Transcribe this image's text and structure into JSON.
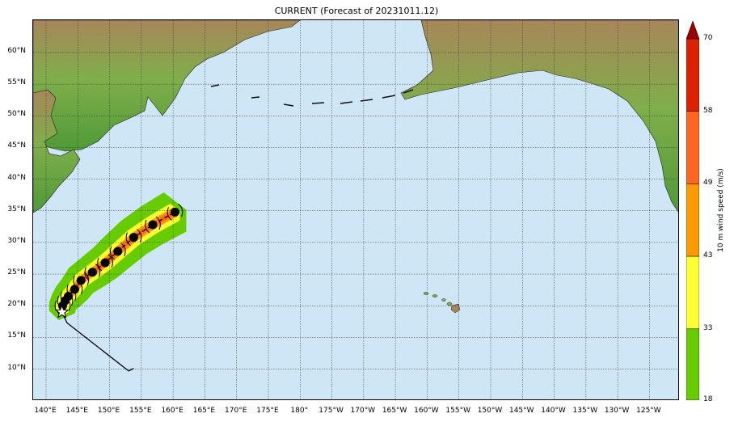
{
  "title": "CURRENT (Forecast of 20231011.12)",
  "lat_labels": [
    "60°N",
    "55°N",
    "50°N",
    "45°N",
    "40°N",
    "35°N",
    "30°N",
    "25°N",
    "20°N",
    "15°N",
    "10°N"
  ],
  "lon_labels": [
    "140°E",
    "145°E",
    "150°E",
    "155°E",
    "160°E",
    "165°E",
    "170°E",
    "175°E",
    "180°",
    "175°W",
    "170°W",
    "165°W",
    "160°W",
    "155°W",
    "150°W",
    "145°W",
    "140°W",
    "135°W",
    "130°W",
    "125°W"
  ],
  "colorbar": {
    "label": "10 m wind speed (m/s)",
    "ticks": [
      "18",
      "33",
      "43",
      "49",
      "58",
      "70"
    ],
    "colors": [
      "#66cc00",
      "#ffff33",
      "#ff9900",
      "#ff6622",
      "#dd2200",
      "#990000"
    ]
  },
  "map": {
    "ocean_color": "#cfe6f6",
    "track_positions": [
      {
        "lon": 142.5,
        "lat": 19.0
      },
      {
        "lon": 142.6,
        "lat": 20.0
      },
      {
        "lon": 143.0,
        "lat": 20.8
      },
      {
        "lon": 143.5,
        "lat": 21.5
      },
      {
        "lon": 144.5,
        "lat": 22.6
      },
      {
        "lon": 145.5,
        "lat": 24.0
      },
      {
        "lon": 147.3,
        "lat": 25.3
      },
      {
        "lon": 149.3,
        "lat": 26.8
      },
      {
        "lon": 151.3,
        "lat": 28.6
      },
      {
        "lon": 153.8,
        "lat": 30.8
      },
      {
        "lon": 156.8,
        "lat": 32.8
      },
      {
        "lon": 160.3,
        "lat": 34.8
      }
    ],
    "past_track": [
      {
        "lon": 142.5,
        "lat": 19.0
      },
      {
        "lon": 143.3,
        "lat": 17.3
      },
      {
        "lon": 153.0,
        "lat": 9.7
      },
      {
        "lon": 153.8,
        "lat": 10.1
      }
    ],
    "current_position": {
      "lon": 142.5,
      "lat": 19.0
    }
  }
}
